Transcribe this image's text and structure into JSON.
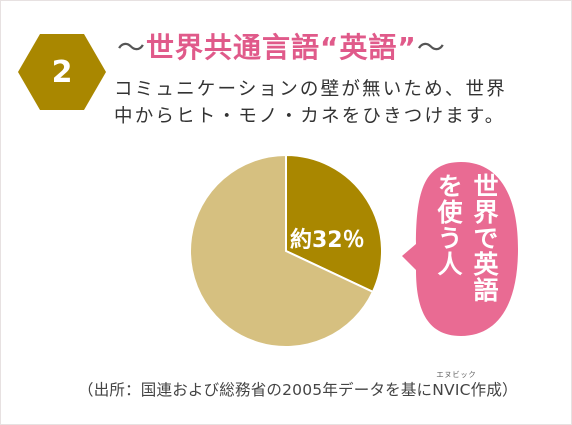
{
  "badge": {
    "number": "2",
    "color": "#a98700"
  },
  "title": {
    "tilde_left": "〜",
    "text": "世界共通言語“英語”",
    "tilde_right": "〜",
    "color": "#e05a8a"
  },
  "description": {
    "line1": "コミュニケーションの壁が無いため、世界",
    "line2": "中からヒト・モノ・カネをひきつけます。"
  },
  "chart_data": {
    "type": "pie",
    "slices": [
      {
        "label": "約32％",
        "value": 32,
        "color": "#a98700"
      },
      {
        "label": "",
        "value": 68,
        "color": "#d6c080"
      }
    ],
    "title": ""
  },
  "callout": {
    "text": "世界で英語を使う人",
    "color": "#e96b93"
  },
  "source": {
    "prefix": "（出所：国連および総務省の2005年データを基に",
    "org": "NVIC",
    "ruby": "エヌビック",
    "suffix": "作成）"
  }
}
